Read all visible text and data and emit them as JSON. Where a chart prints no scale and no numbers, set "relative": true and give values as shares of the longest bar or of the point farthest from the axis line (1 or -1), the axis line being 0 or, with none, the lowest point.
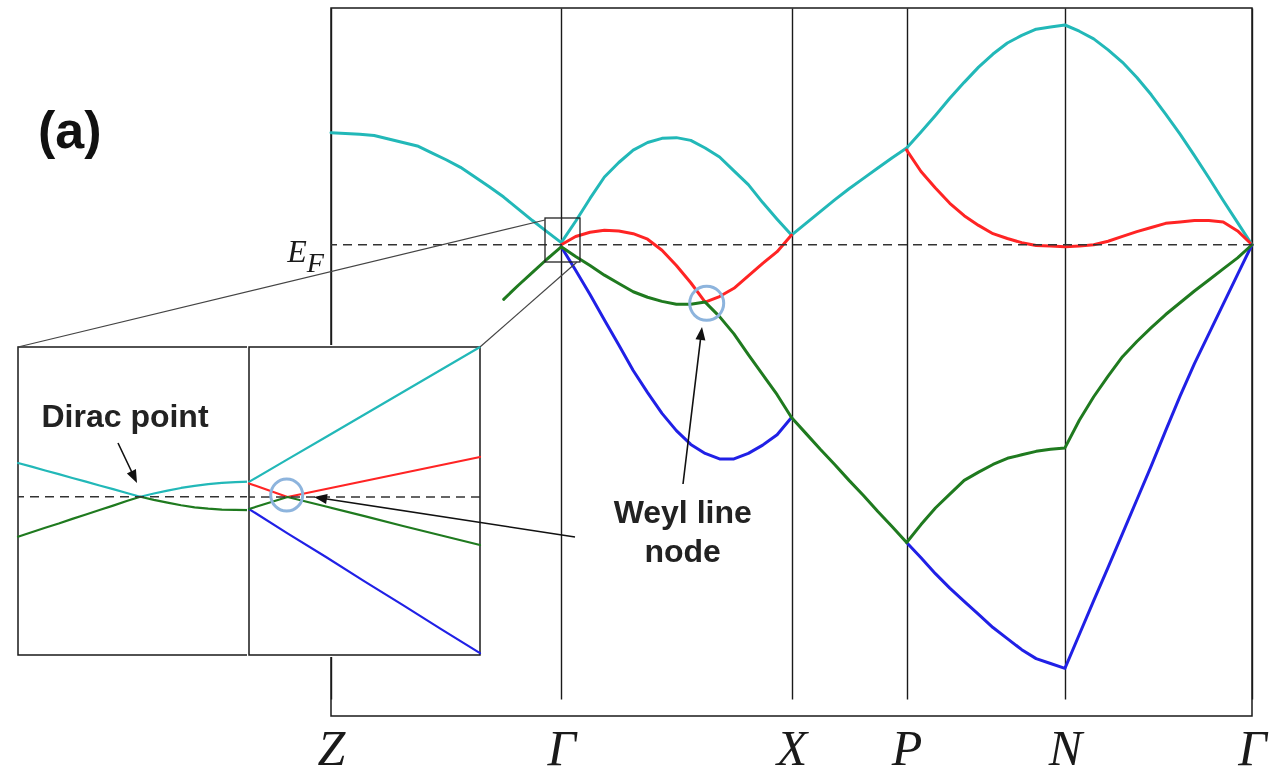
{
  "chart_data": [
    {
      "type": "line",
      "title": "(a)",
      "categories": [
        "Z",
        null,
        null,
        null,
        null,
        null,
        null,
        null,
        null,
        null,
        null,
        null,
        null,
        null,
        null,
        null,
        "Γ",
        null,
        null,
        null,
        null,
        null,
        null,
        null,
        null,
        null,
        null,
        null,
        null,
        null,
        null,
        null,
        "X",
        null,
        null,
        null,
        null,
        null,
        null,
        null,
        "P",
        null,
        null,
        null,
        null,
        null,
        null,
        null,
        null,
        null,
        null,
        "N",
        null,
        null,
        null,
        null,
        null,
        null,
        null,
        null,
        null,
        null,
        null,
        null,
        "Γ"
      ],
      "grid": "x",
      "relative": true,
      "tick_labels": "x",
      "ref_lines": [
        {
          "axis": "y",
          "value": 0.682,
          "label": "E$_{F}$",
          "line_style": "dashed",
          "color": "#333333"
        }
      ],
      "annotations": [
        "Weyl line node"
      ],
      "series": [
        {
          "color": "#22b8b8",
          "values": [
            0.844,
            0.843,
            0.842,
            0.84,
            0.835,
            0.83,
            0.825,
            0.815,
            0.805,
            0.794,
            0.78,
            0.766,
            0.751,
            0.734,
            0.717,
            0.701,
            0.685,
            0.716,
            0.749,
            0.78,
            0.801,
            0.819,
            0.83,
            0.836,
            0.837,
            0.833,
            0.822,
            0.809,
            0.789,
            0.769,
            0.743,
            0.719,
            0.696,
            0.713,
            0.73,
            0.747,
            0.763,
            0.778,
            0.793,
            0.808,
            0.822,
            0.845,
            0.869,
            0.894,
            0.917,
            0.939,
            0.958,
            0.974,
            0.985,
            0.994,
            0.997,
            1,
            0.991,
            0.98,
            0.964,
            0.946,
            0.924,
            0.899,
            0.871,
            0.842,
            0.811,
            0.779,
            0.746,
            0.714,
            0.682
          ]
        },
        {
          "color": "#ff2424",
          "values": [
            null,
            null,
            null,
            null,
            null,
            null,
            null,
            null,
            null,
            null,
            null,
            null,
            null,
            null,
            null,
            null,
            0.682,
            0.694,
            0.7,
            0.703,
            0.702,
            0.698,
            0.69,
            0.674,
            0.652,
            0.627,
            0.599,
            0.607,
            0.619,
            0.637,
            0.655,
            0.672,
            0.696,
            null,
            null,
            null,
            null,
            null,
            null,
            null,
            0.819,
            0.788,
            0.764,
            0.742,
            0.724,
            0.71,
            0.698,
            0.691,
            0.685,
            0.681,
            0.68,
            0.679,
            0.68,
            0.682,
            0.687,
            0.694,
            0.701,
            0.707,
            0.713,
            0.715,
            0.717,
            0.717,
            0.715,
            0.702,
            0.682
          ]
        },
        {
          "color": "#2020e6",
          "values": [
            null,
            null,
            null,
            null,
            null,
            null,
            null,
            null,
            null,
            null,
            null,
            null,
            null,
            null,
            null,
            null,
            0.679,
            0.645,
            0.61,
            0.573,
            0.537,
            0.5,
            0.468,
            0.438,
            0.413,
            0.393,
            0.38,
            0.372,
            0.372,
            0.38,
            0.392,
            0.407,
            0.432,
            null,
            null,
            null,
            null,
            null,
            null,
            null,
            0.251,
            0.229,
            0.206,
            0.185,
            0.166,
            0.147,
            0.128,
            0.112,
            0.096,
            0.083,
            0.076,
            0.069,
            0.118,
            0.167,
            0.215,
            0.264,
            0.313,
            0.362,
            0.413,
            0.463,
            0.51,
            0.553,
            0.596,
            0.639,
            0.682
          ]
        },
        {
          "color": "#1f7a1f",
          "values": [
            null,
            null,
            null,
            null,
            null,
            null,
            null,
            null,
            null,
            null,
            null,
            null,
            0.603,
            0.623,
            0.642,
            0.661,
            0.679,
            0.665,
            0.652,
            0.638,
            0.626,
            0.614,
            0.606,
            0.6,
            0.596,
            0.596,
            0.599,
            0.578,
            0.553,
            0.523,
            0.494,
            0.465,
            0.432,
            0.409,
            0.386,
            0.364,
            0.341,
            0.319,
            0.296,
            0.274,
            0.251,
            0.277,
            0.301,
            0.321,
            0.341,
            0.353,
            0.364,
            0.373,
            0.378,
            0.383,
            0.386,
            0.388,
            0.428,
            0.462,
            0.492,
            0.52,
            0.542,
            0.562,
            0.581,
            0.598,
            0.615,
            0.631,
            0.647,
            0.663,
            0.682
          ]
        }
      ]
    },
    {
      "type": "line",
      "categories": [
        null,
        null,
        null,
        null,
        null,
        null,
        null,
        null,
        null,
        null,
        null,
        null,
        null,
        null,
        null,
        null,
        null,
        null
      ],
      "relative": true,
      "tick_labels": false,
      "ref_lines": [
        {
          "axis": "y",
          "value": 0.824,
          "line_style": "dashed",
          "color": "#333333"
        }
      ],
      "annotations": [
        "Dirac point"
      ],
      "series": [
        {
          "color": "#22b8b8",
          "values": [
            1,
            0.981,
            0.961,
            0.942,
            0.922,
            0.903,
            0.883,
            0.864,
            0.844,
            0.824,
            0.841,
            0.856,
            0.87,
            0.881,
            0.89,
            0.896,
            0.9,
            0.903
          ]
        },
        {
          "color": "#1f7a1f",
          "values": [
            0.616,
            0.639,
            0.663,
            0.685,
            0.709,
            0.732,
            0.755,
            0.778,
            0.802,
            0.824,
            0.808,
            0.794,
            0.78,
            0.769,
            0.762,
            0.757,
            0.756,
            0.755
          ]
        }
      ]
    },
    {
      "type": "line",
      "categories": [
        null,
        null,
        null,
        null,
        null,
        null,
        null
      ],
      "relative": true,
      "tick_labels": false,
      "ref_lines": [
        {
          "axis": "y",
          "value": 0.513,
          "line_style": "dashed",
          "color": "#333333"
        }
      ],
      "series": [
        {
          "color": "#22b8b8",
          "values": [
            0.562,
            0.635,
            0.708,
            0.781,
            0.854,
            0.927,
            1
          ]
        },
        {
          "color": "#ff2424",
          "values": [
            0.557,
            0.513,
            0.539,
            0.565,
            0.591,
            0.617,
            0.643
          ]
        },
        {
          "color": "#2020e6",
          "values": [
            0.474,
            0.395,
            0.318,
            0.239,
            0.162,
            0.083,
            0.006
          ]
        },
        {
          "color": "#1f7a1f",
          "values": [
            0.474,
            0.513,
            0.482,
            0.451,
            0.419,
            0.388,
            0.357
          ]
        }
      ]
    }
  ]
}
